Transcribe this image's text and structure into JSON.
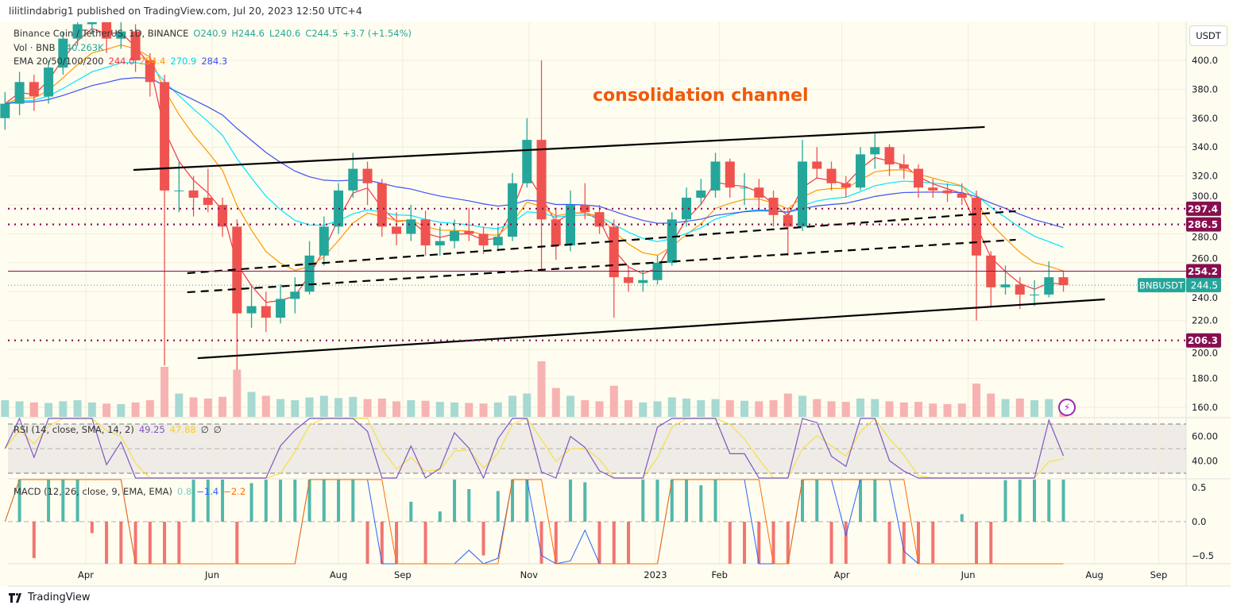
{
  "header": {
    "published": "lilitlindabrig1 published on TradingView.com, Jul 20, 2023 12:50 UTC+4"
  },
  "legend": {
    "symbol": "Binance Coin / TetherUS, 1D, BINANCE",
    "o": "O240.9",
    "h": "H244.6",
    "l": "L240.6",
    "c": "C244.5",
    "change": "+3.7 (+1.54%)",
    "vol_label": "Vol · BNB",
    "vol_value": "140.263K",
    "ema_label": "EMA 20/50/100/200",
    "ema20": "244.0",
    "ema50": "254.4",
    "ema100": "270.9",
    "ema200": "284.3",
    "rsi_label": "RSI (14, close, SMA, 14, 2)",
    "rsi_value": "49.25",
    "rsi_sma": "47.88",
    "rsi_na1": "∅",
    "rsi_na2": "∅",
    "macd_label": "MACD (12, 26, close, 9, EMA, EMA)",
    "macd_hist": "0.8",
    "macd_line": "−1.4",
    "macd_signal": "−2.2"
  },
  "currency_button": "USDT",
  "annotation": "consolidation channel",
  "branding": "TradingView",
  "colors": {
    "up": "#26a69a",
    "down": "#ef5350",
    "ema20": "#f23645",
    "ema50": "#ff9800",
    "ema100": "#00e5ff",
    "ema200": "#3f51f5",
    "level": "#880e4f",
    "rsi": "#7e57c2",
    "rsi_sma": "#f5e04a",
    "note": "#f05a0a",
    "background": "#fffdf0"
  },
  "icons": {
    "alert": "lightning-bolt-icon",
    "logo": "tradingview-logo-icon"
  },
  "chart_data": {
    "type": "candlestick",
    "price_axis": {
      "ticks": [
        160,
        180,
        200,
        220,
        240,
        260,
        280,
        300,
        320,
        340,
        360,
        380,
        400
      ],
      "ylim": [
        160,
        400
      ]
    },
    "time_axis": {
      "ticks": [
        {
          "label": "Apr",
          "date": "2022-04-01"
        },
        {
          "label": "Jun",
          "date": "2022-06-01"
        },
        {
          "label": "Aug",
          "date": "2022-08-01"
        },
        {
          "label": "Sep",
          "date": "2022-09-01"
        },
        {
          "label": "Nov",
          "date": "2022-11-01"
        },
        {
          "label": "2023",
          "date": "2023-01-01"
        },
        {
          "label": "Feb",
          "date": "2023-02-01"
        },
        {
          "label": "Apr",
          "date": "2023-04-01"
        },
        {
          "label": "Jun",
          "date": "2023-06-01"
        },
        {
          "label": "Aug",
          "date": "2023-08-01"
        },
        {
          "label": "Sep",
          "date": "2023-09-01"
        }
      ]
    },
    "candles": [
      [
        "2022-02-21",
        360,
        378,
        352,
        370
      ],
      [
        "2022-02-28",
        370,
        392,
        362,
        385
      ],
      [
        "2022-03-07",
        385,
        390,
        365,
        375
      ],
      [
        "2022-03-14",
        375,
        400,
        370,
        395
      ],
      [
        "2022-03-21",
        395,
        420,
        390,
        415
      ],
      [
        "2022-03-28",
        415,
        440,
        410,
        425
      ],
      [
        "2022-04-04",
        425,
        445,
        418,
        430
      ],
      [
        "2022-04-11",
        430,
        435,
        405,
        415
      ],
      [
        "2022-04-18",
        415,
        428,
        408,
        420
      ],
      [
        "2022-04-25",
        420,
        425,
        392,
        400
      ],
      [
        "2022-05-02",
        400,
        405,
        375,
        385
      ],
      [
        "2022-05-09",
        385,
        390,
        189,
        310
      ],
      [
        "2022-05-16",
        310,
        330,
        295,
        310
      ],
      [
        "2022-05-23",
        310,
        320,
        292,
        305
      ],
      [
        "2022-05-30",
        305,
        325,
        295,
        300
      ],
      [
        "2022-06-06",
        300,
        305,
        278,
        285
      ],
      [
        "2022-06-13",
        285,
        290,
        186,
        225
      ],
      [
        "2022-06-20",
        225,
        245,
        215,
        230
      ],
      [
        "2022-06-27",
        230,
        240,
        212,
        222
      ],
      [
        "2022-07-04",
        222,
        245,
        218,
        235
      ],
      [
        "2022-07-11",
        235,
        250,
        225,
        240
      ],
      [
        "2022-07-18",
        240,
        275,
        238,
        265
      ],
      [
        "2022-07-25",
        265,
        292,
        258,
        285
      ],
      [
        "2022-08-01",
        285,
        315,
        280,
        310
      ],
      [
        "2022-08-08",
        310,
        336,
        305,
        325
      ],
      [
        "2022-08-15",
        325,
        330,
        300,
        315
      ],
      [
        "2022-08-22",
        315,
        318,
        278,
        285
      ],
      [
        "2022-08-29",
        285,
        295,
        272,
        280
      ],
      [
        "2022-09-05",
        280,
        300,
        275,
        290
      ],
      [
        "2022-09-12",
        290,
        296,
        265,
        272
      ],
      [
        "2022-09-19",
        272,
        285,
        265,
        275
      ],
      [
        "2022-09-26",
        275,
        290,
        270,
        282
      ],
      [
        "2022-10-03",
        282,
        298,
        275,
        280
      ],
      [
        "2022-10-10",
        280,
        285,
        266,
        272
      ],
      [
        "2022-10-17",
        272,
        285,
        268,
        278
      ],
      [
        "2022-10-24",
        278,
        322,
        275,
        315
      ],
      [
        "2022-10-31",
        315,
        360,
        312,
        345
      ],
      [
        "2022-11-07",
        345,
        400,
        255,
        290
      ],
      [
        "2022-11-14",
        290,
        298,
        262,
        272
      ],
      [
        "2022-11-21",
        272,
        310,
        268,
        300
      ],
      [
        "2022-11-28",
        300,
        315,
        290,
        295
      ],
      [
        "2022-12-05",
        295,
        300,
        280,
        285
      ],
      [
        "2022-12-12",
        285,
        290,
        222,
        250
      ],
      [
        "2022-12-19",
        250,
        258,
        240,
        246
      ],
      [
        "2022-12-26",
        246,
        255,
        240,
        248
      ],
      [
        "2023-01-02",
        248,
        265,
        245,
        260
      ],
      [
        "2023-01-09",
        260,
        295,
        258,
        290
      ],
      [
        "2023-01-16",
        290,
        312,
        285,
        305
      ],
      [
        "2023-01-23",
        305,
        318,
        300,
        310
      ],
      [
        "2023-01-30",
        310,
        336,
        305,
        330
      ],
      [
        "2023-02-06",
        330,
        332,
        305,
        312
      ],
      [
        "2023-02-13",
        312,
        322,
        300,
        312
      ],
      [
        "2023-02-20",
        312,
        318,
        298,
        305
      ],
      [
        "2023-02-27",
        305,
        310,
        285,
        293
      ],
      [
        "2023-03-06",
        293,
        298,
        265,
        285
      ],
      [
        "2023-03-13",
        285,
        345,
        282,
        330
      ],
      [
        "2023-03-20",
        330,
        340,
        318,
        325
      ],
      [
        "2023-03-27",
        325,
        330,
        310,
        315
      ],
      [
        "2023-04-03",
        315,
        320,
        305,
        312
      ],
      [
        "2023-04-10",
        312,
        340,
        310,
        335
      ],
      [
        "2023-04-17",
        335,
        350,
        325,
        340
      ],
      [
        "2023-04-24",
        340,
        342,
        320,
        328
      ],
      [
        "2023-05-01",
        328,
        335,
        318,
        325
      ],
      [
        "2023-05-08",
        325,
        328,
        305,
        312
      ],
      [
        "2023-05-15",
        312,
        318,
        305,
        310
      ],
      [
        "2023-05-22",
        310,
        315,
        302,
        308
      ],
      [
        "2023-05-29",
        308,
        315,
        300,
        305
      ],
      [
        "2023-06-05",
        305,
        310,
        220,
        265
      ],
      [
        "2023-06-12",
        265,
        268,
        230,
        243
      ],
      [
        "2023-06-19",
        243,
        258,
        238,
        245
      ],
      [
        "2023-06-26",
        245,
        250,
        228,
        238
      ],
      [
        "2023-07-03",
        238,
        248,
        230,
        238
      ],
      [
        "2023-07-10",
        238,
        261,
        236,
        250
      ],
      [
        "2023-07-17",
        250,
        254,
        240,
        244.5
      ]
    ],
    "volume_k": [
      300,
      280,
      260,
      250,
      280,
      300,
      260,
      240,
      230,
      260,
      300,
      900,
      420,
      350,
      330,
      360,
      850,
      450,
      380,
      320,
      300,
      350,
      380,
      340,
      360,
      320,
      330,
      280,
      300,
      290,
      270,
      260,
      250,
      240,
      260,
      380,
      420,
      1000,
      520,
      380,
      300,
      280,
      560,
      300,
      260,
      280,
      350,
      330,
      300,
      320,
      300,
      290,
      280,
      300,
      420,
      380,
      320,
      280,
      270,
      330,
      320,
      280,
      260,
      270,
      240,
      230,
      240,
      600,
      420,
      320,
      330,
      300,
      320,
      140.263
    ],
    "horizontal_levels": [
      {
        "label": "297.4",
        "price": 297.4,
        "style": "dotted"
      },
      {
        "label": "286.5",
        "price": 286.5,
        "style": "dotted"
      },
      {
        "label": "254.2",
        "price": 254.2,
        "style": "solid"
      },
      {
        "label": "206.3",
        "price": 206.3,
        "style": "dotted"
      }
    ],
    "last_price": {
      "symbol": "BNBUSDT",
      "label": "244.5",
      "price": 244.5
    },
    "trendlines": [
      {
        "style": "solid",
        "from": [
          "2022-04-24",
          324.2
        ],
        "to": [
          "2023-06-09",
          353.9
        ]
      },
      {
        "style": "solid",
        "from": [
          "2022-05-25",
          194.0
        ],
        "to": [
          "2023-08-06",
          234.7
        ]
      },
      {
        "style": "dashed",
        "from": [
          "2022-05-20",
          252.8
        ],
        "to": [
          "2023-06-24",
          295.7
        ]
      },
      {
        "style": "dashed",
        "from": [
          "2022-05-20",
          239.6
        ],
        "to": [
          "2023-06-24",
          275.9
        ]
      }
    ],
    "rsi_axis": {
      "ticks": [
        "60.00",
        "40.00"
      ],
      "tick_values": [
        60,
        40
      ],
      "bands": [
        70,
        30
      ],
      "mid": 50
    },
    "macd_axis": {
      "ticks": [
        "0.5",
        "0.0",
        "−0.5"
      ],
      "tick_values": [
        0.5,
        0,
        -0.5
      ]
    }
  }
}
